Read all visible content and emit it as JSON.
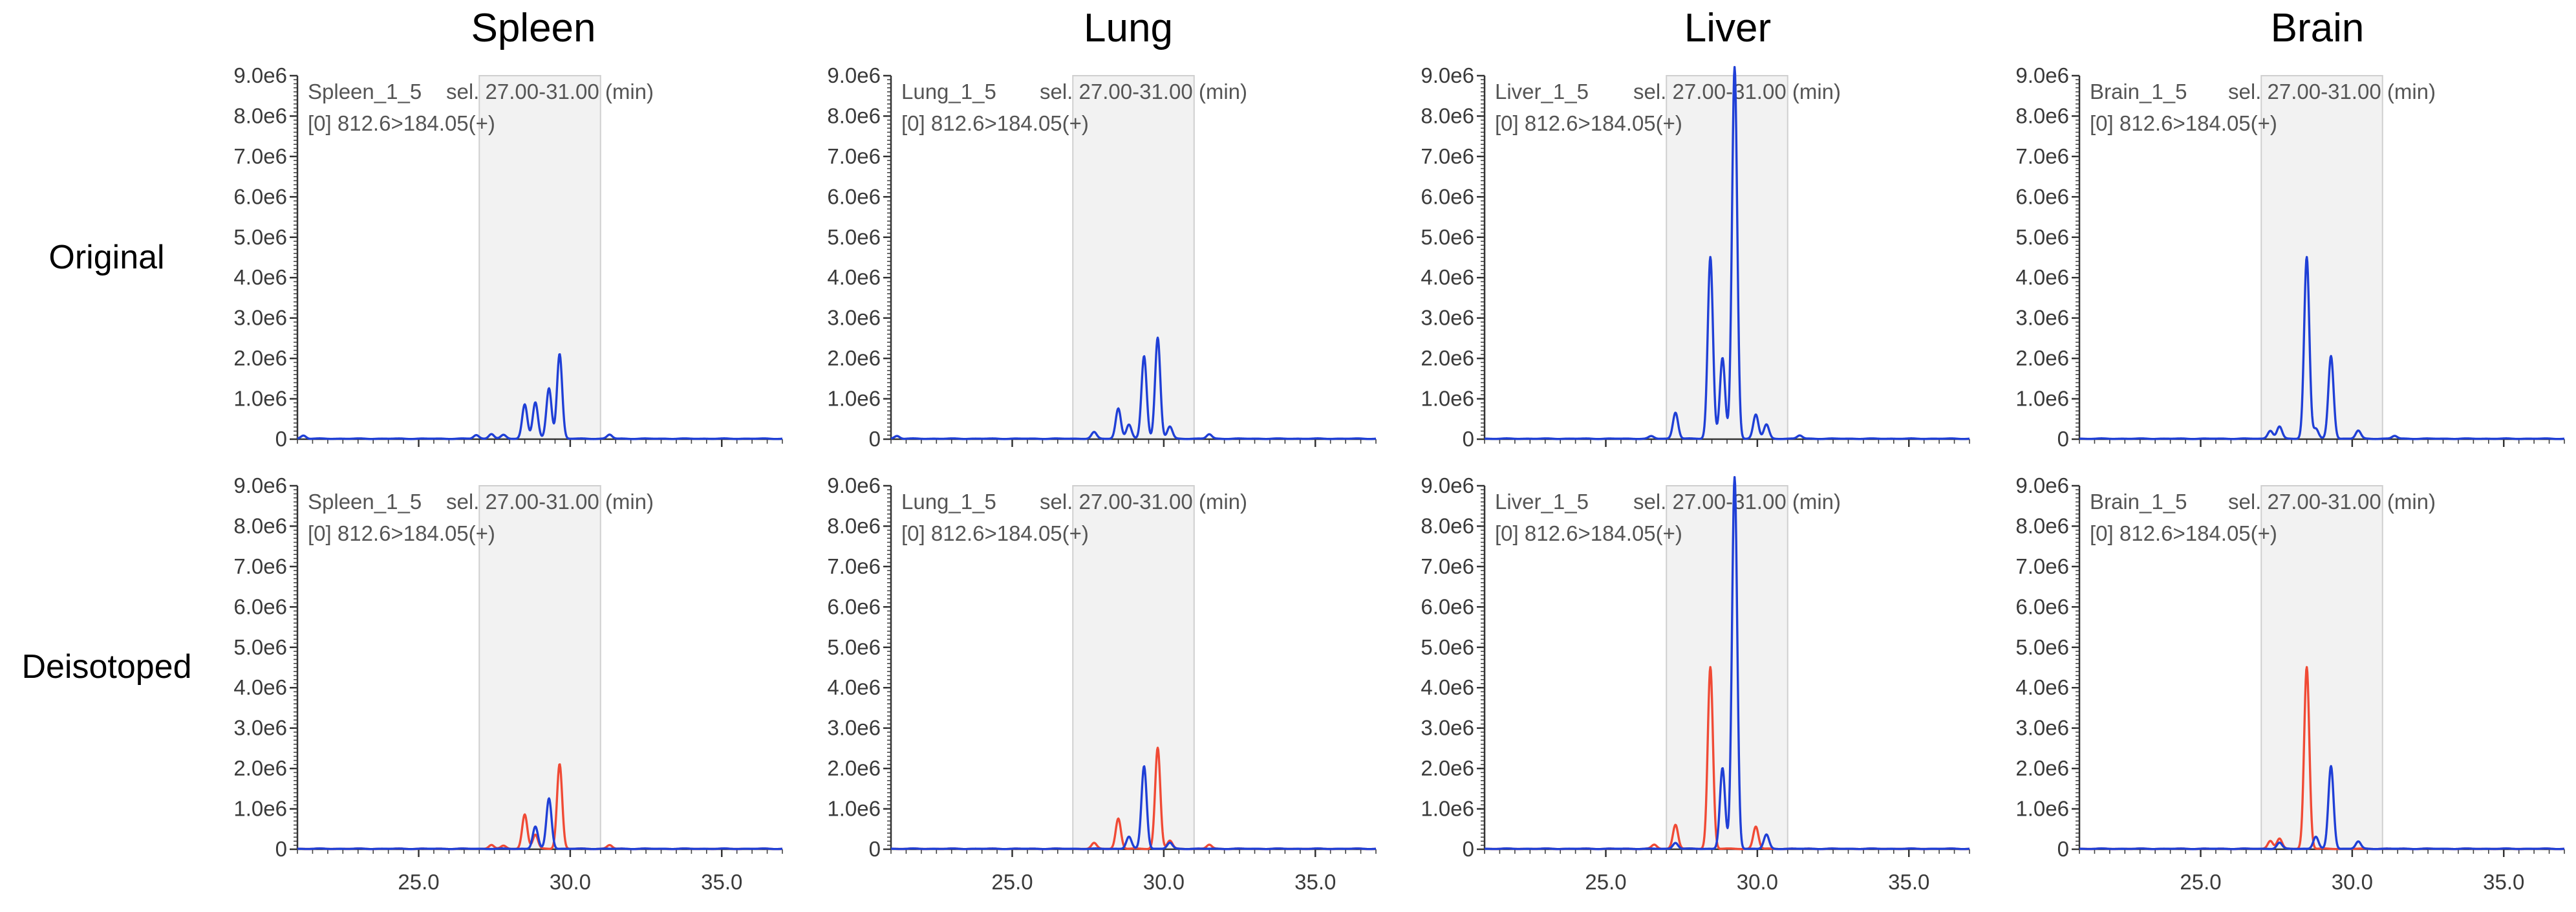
{
  "columns": [
    "Spleen",
    "Lung",
    "Liver",
    "Brain"
  ],
  "rows": [
    "Original",
    "Deisotoped"
  ],
  "colors": {
    "original": "#1f3fd6",
    "isotope": "#f04a35"
  },
  "chart_data": {
    "type": "line",
    "ylim": [
      0,
      9000000
    ],
    "yticks": [
      "0",
      "1.0e6",
      "2.0e6",
      "3.0e6",
      "4.0e6",
      "5.0e6",
      "6.0e6",
      "7.0e6",
      "8.0e6",
      "9.0e6"
    ],
    "xlim": [
      21.0,
      37.0
    ],
    "xticks": [
      25.0,
      30.0,
      35.0
    ],
    "xtick_labels": [
      "25.0",
      "30.0",
      "35.0"
    ],
    "selection": [
      27.0,
      31.0
    ],
    "transition_label": "[0] 812.6>184.05(+)",
    "selection_label": "sel. 27.00-31.00 (min)",
    "panels": [
      {
        "tissue": "Spleen",
        "sample": "Spleen_1_5",
        "original_peaks": [
          [
            21.2,
            80000
          ],
          [
            26.9,
            90000
          ],
          [
            27.4,
            120000
          ],
          [
            27.8,
            90000
          ],
          [
            28.5,
            850000
          ],
          [
            28.85,
            900000
          ],
          [
            29.3,
            1250000
          ],
          [
            29.65,
            2100000
          ],
          [
            31.3,
            100000
          ]
        ],
        "deisotoped_blue": [
          [
            28.85,
            550000
          ],
          [
            29.3,
            1250000
          ]
        ],
        "deisotoped_red": [
          [
            27.4,
            100000
          ],
          [
            27.8,
            70000
          ],
          [
            28.5,
            850000
          ],
          [
            28.85,
            350000
          ],
          [
            29.65,
            2100000
          ],
          [
            31.3,
            90000
          ]
        ]
      },
      {
        "tissue": "Lung",
        "sample": "Lung_1_5",
        "original_peaks": [
          [
            21.2,
            70000
          ],
          [
            27.7,
            160000
          ],
          [
            28.5,
            750000
          ],
          [
            28.85,
            350000
          ],
          [
            29.35,
            2050000
          ],
          [
            29.8,
            2500000
          ],
          [
            30.2,
            300000
          ],
          [
            31.5,
            110000
          ]
        ],
        "deisotoped_blue": [
          [
            28.85,
            300000
          ],
          [
            29.35,
            2050000
          ],
          [
            30.2,
            150000
          ]
        ],
        "deisotoped_red": [
          [
            27.7,
            140000
          ],
          [
            28.5,
            750000
          ],
          [
            29.8,
            2500000
          ],
          [
            30.2,
            200000
          ],
          [
            31.5,
            100000
          ]
        ]
      },
      {
        "tissue": "Liver",
        "sample": "Liver_1_5",
        "original_peaks": [
          [
            26.5,
            60000
          ],
          [
            27.3,
            650000
          ],
          [
            28.45,
            4500000
          ],
          [
            28.85,
            2000000
          ],
          [
            29.25,
            9200000
          ],
          [
            29.95,
            600000
          ],
          [
            30.3,
            350000
          ],
          [
            31.4,
            80000
          ]
        ],
        "deisotoped_blue": [
          [
            27.3,
            150000
          ],
          [
            28.85,
            2000000
          ],
          [
            29.25,
            9200000
          ],
          [
            30.3,
            350000
          ]
        ],
        "deisotoped_red": [
          [
            26.6,
            100000
          ],
          [
            27.3,
            600000
          ],
          [
            28.45,
            4500000
          ],
          [
            29.95,
            550000
          ]
        ]
      },
      {
        "tissue": "Brain",
        "sample": "Brain_1_5",
        "original_peaks": [
          [
            27.3,
            200000
          ],
          [
            27.6,
            300000
          ],
          [
            28.5,
            4500000
          ],
          [
            28.8,
            250000
          ],
          [
            29.3,
            2050000
          ],
          [
            30.2,
            200000
          ],
          [
            31.4,
            70000
          ]
        ],
        "deisotoped_blue": [
          [
            27.6,
            150000
          ],
          [
            28.8,
            300000
          ],
          [
            29.3,
            2050000
          ],
          [
            30.2,
            180000
          ]
        ],
        "deisotoped_red": [
          [
            27.3,
            200000
          ],
          [
            27.6,
            250000
          ],
          [
            28.5,
            4500000
          ]
        ]
      }
    ]
  }
}
